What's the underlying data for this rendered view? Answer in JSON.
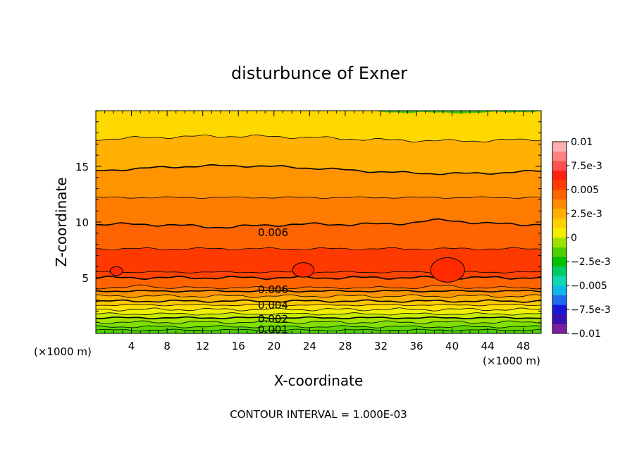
{
  "chart_data": {
    "type": "contour",
    "title": "disturbunce of Exner",
    "xlabel": "X-coordinate",
    "ylabel": "Z-coordinate",
    "x_unit_left": "(×1000 m)",
    "x_unit_right": "(×1000 m)",
    "xlim": [
      0,
      50
    ],
    "ylim": [
      0,
      20
    ],
    "x_ticks": [
      4,
      8,
      12,
      16,
      20,
      24,
      28,
      32,
      36,
      40,
      44,
      48
    ],
    "y_ticks": [
      5,
      10,
      15
    ],
    "footer": "CONTOUR INTERVAL = 1.000E-03",
    "colorbar": {
      "range": [
        -0.01,
        0.01
      ],
      "tick_values": [
        0.01,
        0.0075,
        0.005,
        0.0025,
        0,
        -0.0025,
        -0.005,
        -0.0075,
        -0.01
      ],
      "tick_labels": [
        "0.01",
        "7.5e-3",
        "0.005",
        "2.5e-3",
        "0",
        "−2.5e-3",
        "−0.005",
        "−7.5e-3",
        "−0.01"
      ],
      "colors_low_to_high": [
        "#7a1fa0",
        "#3a0fb0",
        "#1818d8",
        "#1e6cf0",
        "#10b8e8",
        "#10d8b0",
        "#00cc66",
        "#00c000",
        "#50d000",
        "#a0e000",
        "#f0f000",
        "#ffd000",
        "#ffb000",
        "#ff8c00",
        "#ff6400",
        "#ff3c00",
        "#ff2010",
        "#ff5050",
        "#ff8080",
        "#ffb0b0"
      ]
    },
    "contour_labels": [
      {
        "text": "0.006",
        "x": 18.2,
        "z": 9.1
      },
      {
        "text": "0.006",
        "x": 18.2,
        "z": 4.0
      },
      {
        "text": "0.004",
        "x": 18.2,
        "z": 2.6
      },
      {
        "text": "0.002",
        "x": 18.2,
        "z": 1.35
      },
      {
        "text": "0.001",
        "x": 18.2,
        "z": 0.4
      }
    ],
    "levels": [
      {
        "z": 0.3,
        "value": 0.0005,
        "color": "#50d000"
      },
      {
        "z": 0.6,
        "value": 0.001,
        "color": "#60d800"
      },
      {
        "z": 1.0,
        "value": 0.0015,
        "color": "#80e000"
      },
      {
        "z": 1.4,
        "value": 0.002,
        "color": "#a0e400"
      },
      {
        "z": 1.75,
        "value": 0.0025,
        "color": "#c8ec00"
      },
      {
        "z": 2.15,
        "value": 0.003,
        "color": "#f0f000"
      },
      {
        "z": 2.55,
        "value": 0.0035,
        "color": "#ffe000"
      },
      {
        "z": 2.9,
        "value": 0.004,
        "color": "#ffc800"
      },
      {
        "z": 3.35,
        "value": 0.0045,
        "color": "#ffb000"
      },
      {
        "z": 3.8,
        "value": 0.005,
        "color": "#ff9400"
      },
      {
        "z": 4.1,
        "value": 0.0055,
        "color": "#ff7c00"
      },
      {
        "z": 5.0,
        "value": 0.006,
        "color": "#ff6400"
      },
      {
        "z": 5.5,
        "value": 0.0065,
        "color": "#ff4400"
      },
      {
        "z": 7.6,
        "value": 0.0065,
        "color": "#ff3a00"
      },
      {
        "z": 9.8,
        "value": 0.006,
        "color": "#ff6400"
      },
      {
        "z": 12.2,
        "value": 0.0055,
        "color": "#ff7c00"
      },
      {
        "z": 14.7,
        "value": 0.005,
        "color": "#ff9400"
      },
      {
        "z": 17.5,
        "value": 0.0045,
        "color": "#ffb000"
      },
      {
        "z": 20.0,
        "value": 0.004,
        "color": "#ffd800"
      }
    ],
    "cells_above_0065": [
      {
        "x": 39.5,
        "z": 5.7,
        "rx": 1.9,
        "rz": 1.1
      },
      {
        "x": 23.3,
        "z": 5.7,
        "rx": 1.2,
        "rz": 0.65
      },
      {
        "x": 2.3,
        "z": 5.6,
        "rx": 0.7,
        "rz": 0.4
      }
    ]
  }
}
